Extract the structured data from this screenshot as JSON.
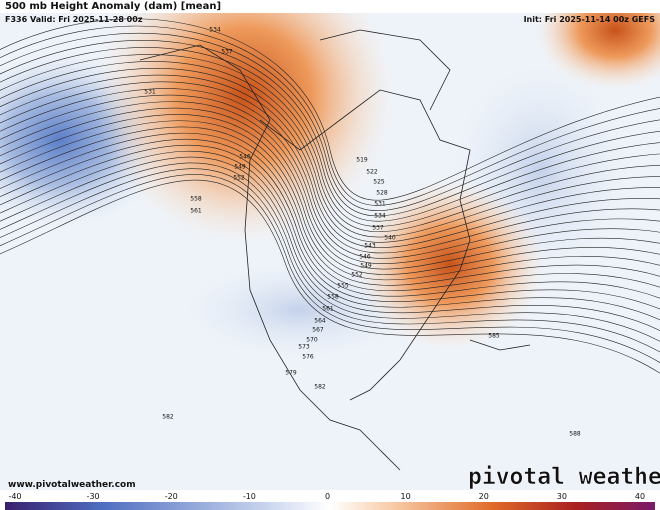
{
  "header": {
    "title": "500 mb Height Anomaly (dam) [mean]",
    "valid": "F336 Valid: Fri 2025-11-28 00z",
    "init": "Init: Fri 2025-11-14 00z GEFS"
  },
  "contour_labels": [
    534,
    537,
    531,
    546,
    549,
    552,
    558,
    561,
    519,
    522,
    525,
    528,
    531,
    534,
    537,
    540,
    543,
    546,
    549,
    552,
    555,
    558,
    561,
    564,
    567,
    570,
    573,
    576,
    579,
    582,
    585,
    582,
    588
  ],
  "footer": {
    "website": "www.pivotalweather.com",
    "logo": "pivotal weather"
  },
  "colorbar": {
    "ticks": [
      -40,
      -30,
      -20,
      -10,
      0,
      10,
      20,
      30,
      40
    ]
  }
}
